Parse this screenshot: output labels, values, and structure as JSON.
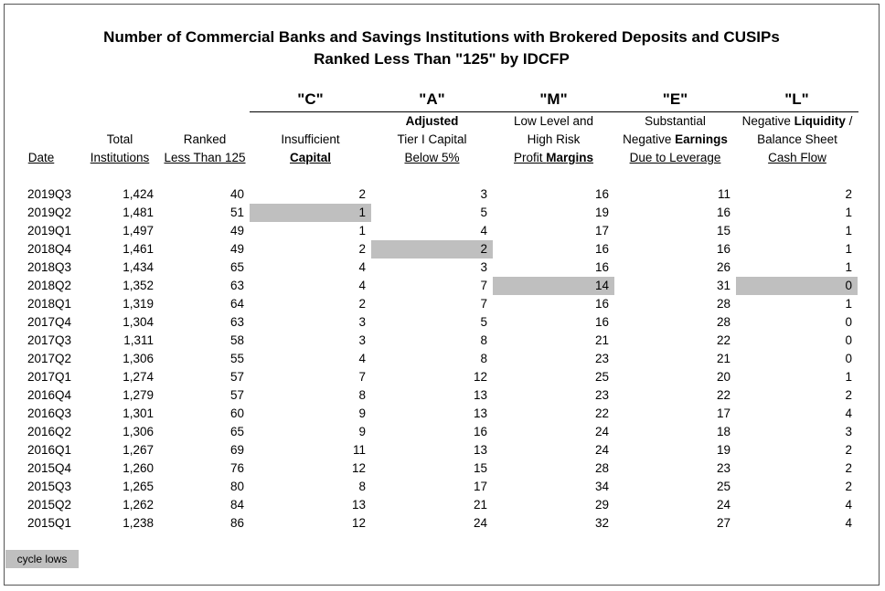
{
  "chart_data": {
    "type": "table",
    "title": "Number of Commercial Banks and Savings Institutions with Brokered Deposits and CUSIPs",
    "subtitle": "Ranked Less Than \"125\" by IDCFP",
    "group_letters": [
      "\"C\"",
      "\"A\"",
      "\"M\"",
      "\"E\"",
      "\"L\""
    ],
    "headers": {
      "date": "Date",
      "total_1": "Total",
      "total_2": "Institutions",
      "ranked_1": "Ranked",
      "ranked_2": "Less Than 125",
      "c_1": "Insufficient",
      "c_2": "Capital",
      "a_1": "Adjusted",
      "a_2": "Tier I Capital",
      "a_3": "Below 5%",
      "m_1": "Low Level and",
      "m_2": "High Risk",
      "m_3a": "Profit ",
      "m_3b": "Margins",
      "e_1": "Substantial",
      "e_2a": "Negative ",
      "e_2b": "Earnings",
      "e_3": "Due to Leverage",
      "l_1a": "Negative ",
      "l_1b": "Liquidity",
      "l_1c": " /",
      "l_2": "Balance Sheet",
      "l_3": "Cash Flow"
    },
    "rows": [
      {
        "date": "2019Q3",
        "total": "1,424",
        "ranked": "40",
        "c": "2",
        "a": "3",
        "m": "16",
        "e": "11",
        "l": "2"
      },
      {
        "date": "2019Q2",
        "total": "1,481",
        "ranked": "51",
        "c": "1",
        "a": "5",
        "m": "19",
        "e": "16",
        "l": "1"
      },
      {
        "date": "2019Q1",
        "total": "1,497",
        "ranked": "49",
        "c": "1",
        "a": "4",
        "m": "17",
        "e": "15",
        "l": "1"
      },
      {
        "date": "2018Q4",
        "total": "1,461",
        "ranked": "49",
        "c": "2",
        "a": "2",
        "m": "16",
        "e": "16",
        "l": "1"
      },
      {
        "date": "2018Q3",
        "total": "1,434",
        "ranked": "65",
        "c": "4",
        "a": "3",
        "m": "16",
        "e": "26",
        "l": "1"
      },
      {
        "date": "2018Q2",
        "total": "1,352",
        "ranked": "63",
        "c": "4",
        "a": "7",
        "m": "14",
        "e": "31",
        "l": "0"
      },
      {
        "date": "2018Q1",
        "total": "1,319",
        "ranked": "64",
        "c": "2",
        "a": "7",
        "m": "16",
        "e": "28",
        "l": "1"
      },
      {
        "date": "2017Q4",
        "total": "1,304",
        "ranked": "63",
        "c": "3",
        "a": "5",
        "m": "16",
        "e": "28",
        "l": "0"
      },
      {
        "date": "2017Q3",
        "total": "1,311",
        "ranked": "58",
        "c": "3",
        "a": "8",
        "m": "21",
        "e": "22",
        "l": "0"
      },
      {
        "date": "2017Q2",
        "total": "1,306",
        "ranked": "55",
        "c": "4",
        "a": "8",
        "m": "23",
        "e": "21",
        "l": "0"
      },
      {
        "date": "2017Q1",
        "total": "1,274",
        "ranked": "57",
        "c": "7",
        "a": "12",
        "m": "25",
        "e": "20",
        "l": "1"
      },
      {
        "date": "2016Q4",
        "total": "1,279",
        "ranked": "57",
        "c": "8",
        "a": "13",
        "m": "23",
        "e": "22",
        "l": "2"
      },
      {
        "date": "2016Q3",
        "total": "1,301",
        "ranked": "60",
        "c": "9",
        "a": "13",
        "m": "22",
        "e": "17",
        "l": "4"
      },
      {
        "date": "2016Q2",
        "total": "1,306",
        "ranked": "65",
        "c": "9",
        "a": "16",
        "m": "24",
        "e": "18",
        "l": "3"
      },
      {
        "date": "2016Q1",
        "total": "1,267",
        "ranked": "69",
        "c": "11",
        "a": "13",
        "m": "24",
        "e": "19",
        "l": "2"
      },
      {
        "date": "2015Q4",
        "total": "1,260",
        "ranked": "76",
        "c": "12",
        "a": "15",
        "m": "28",
        "e": "23",
        "l": "2"
      },
      {
        "date": "2015Q3",
        "total": "1,265",
        "ranked": "80",
        "c": "8",
        "a": "17",
        "m": "34",
        "e": "25",
        "l": "2"
      },
      {
        "date": "2015Q2",
        "total": "1,262",
        "ranked": "84",
        "c": "13",
        "a": "21",
        "m": "29",
        "e": "24",
        "l": "4"
      },
      {
        "date": "2015Q1",
        "total": "1,238",
        "ranked": "86",
        "c": "12",
        "a": "24",
        "m": "32",
        "e": "27",
        "l": "4"
      }
    ],
    "cycle_lows": [
      {
        "row": 1,
        "col": "c"
      },
      {
        "row": 3,
        "col": "a"
      },
      {
        "row": 5,
        "col": "m"
      },
      {
        "row": 5,
        "col": "l"
      }
    ],
    "legend_label": "cycle lows",
    "highlight_color": "#bfbfbf"
  }
}
